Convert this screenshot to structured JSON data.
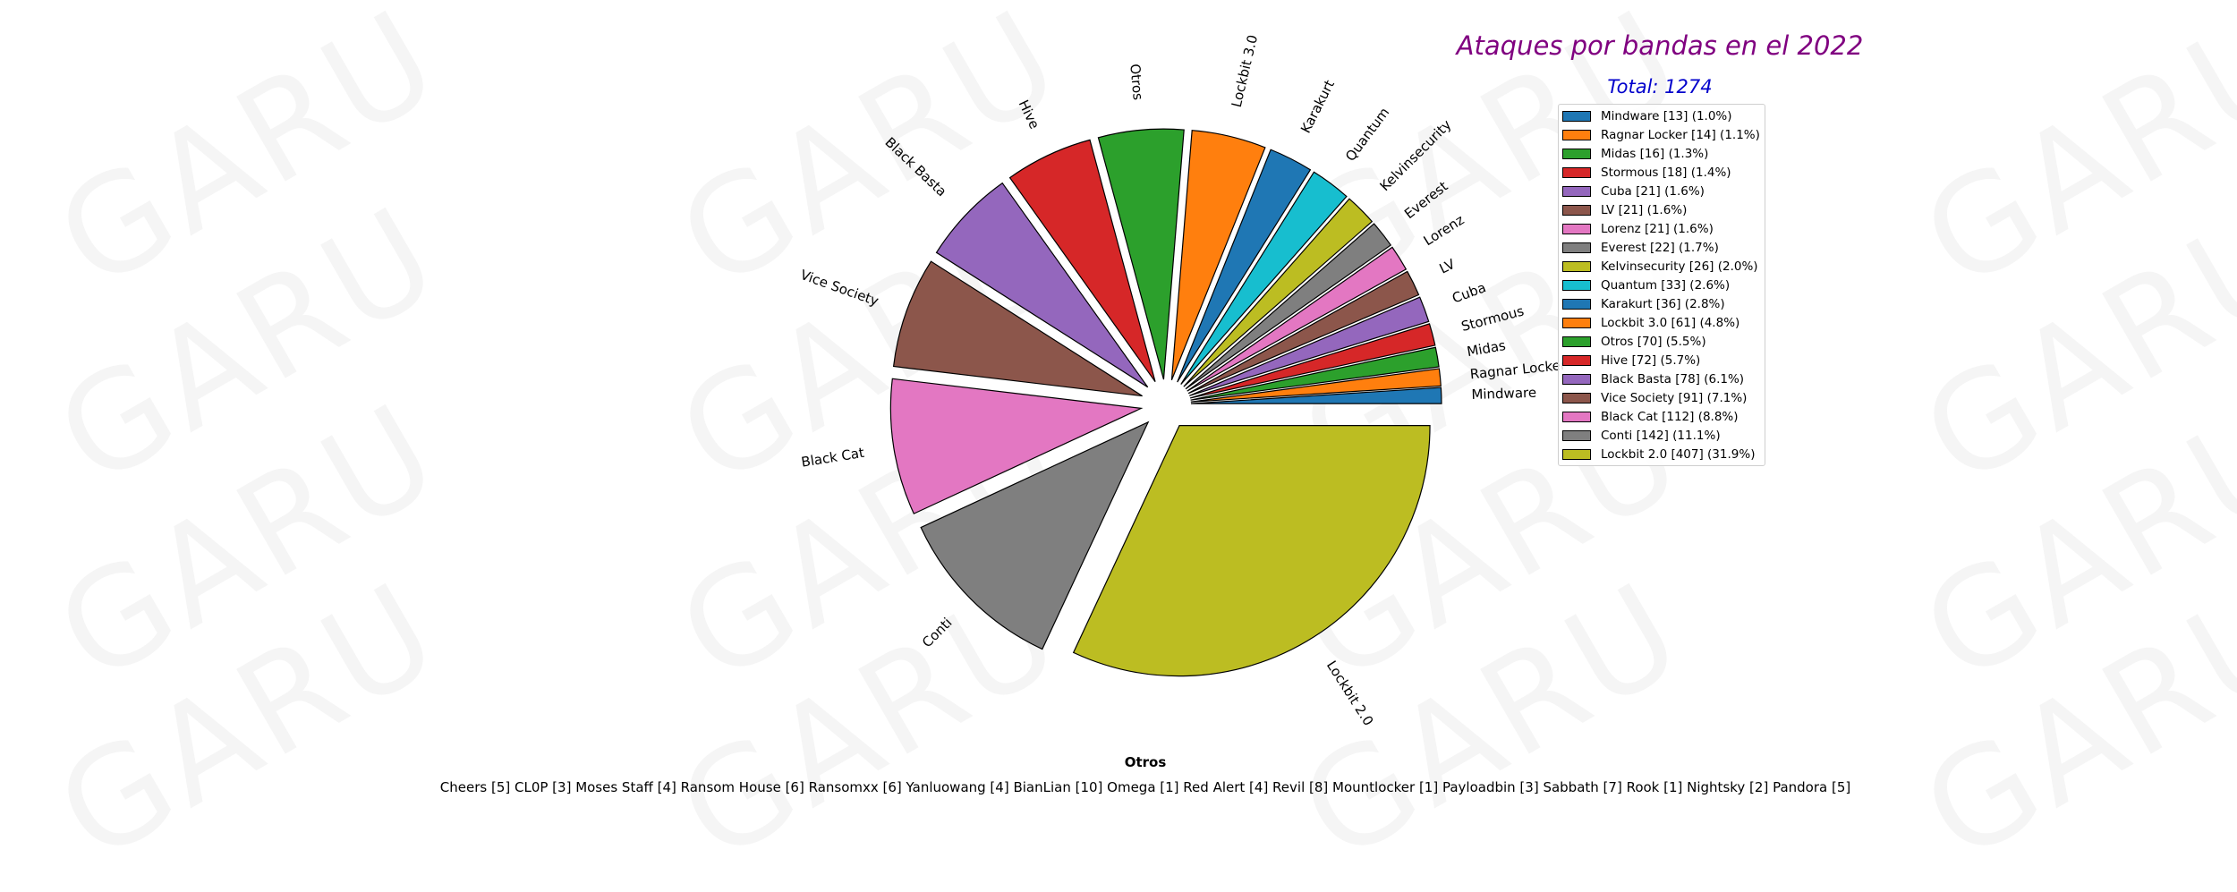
{
  "watermark": "GARU",
  "chart_data": {
    "type": "pie",
    "title": "Ataques por bandas en el 2022",
    "subtitle": "Total: 1274",
    "slices": [
      {
        "label": "Mindware",
        "value": 13,
        "legend": "Mindware [13] (1.0%)",
        "color": "#1f77b4"
      },
      {
        "label": "Ragnar Locker",
        "value": 14,
        "legend": "Ragnar Locker [14] (1.1%)",
        "color": "#ff7f0e"
      },
      {
        "label": "Midas",
        "value": 16,
        "legend": "Midas [16] (1.3%)",
        "color": "#2ca02c"
      },
      {
        "label": "Stormous",
        "value": 18,
        "legend": "Stormous [18] (1.4%)",
        "color": "#d62728"
      },
      {
        "label": "Cuba",
        "value": 21,
        "legend": "Cuba [21] (1.6%)",
        "color": "#9467bd"
      },
      {
        "label": "LV",
        "value": 21,
        "legend": "LV [21] (1.6%)",
        "color": "#8c564b"
      },
      {
        "label": "Lorenz",
        "value": 21,
        "legend": "Lorenz [21] (1.6%)",
        "color": "#e377c2"
      },
      {
        "label": "Everest",
        "value": 22,
        "legend": "Everest [22] (1.7%)",
        "color": "#7f7f7f"
      },
      {
        "label": "Kelvinsecurity",
        "value": 26,
        "legend": "Kelvinsecurity [26] (2.0%)",
        "color": "#bcbd22"
      },
      {
        "label": "Quantum",
        "value": 33,
        "legend": "Quantum [33] (2.6%)",
        "color": "#17becf"
      },
      {
        "label": "Karakurt",
        "value": 36,
        "legend": "Karakurt [36] (2.8%)",
        "color": "#1f77b4"
      },
      {
        "label": "Lockbit 3.0",
        "value": 61,
        "legend": "Lockbit 3.0 [61] (4.8%)",
        "color": "#ff7f0e"
      },
      {
        "label": "Otros",
        "value": 70,
        "legend": "Otros [70] (5.5%)",
        "color": "#2ca02c"
      },
      {
        "label": "Hive",
        "value": 72,
        "legend": "Hive [72] (5.7%)",
        "color": "#d62728"
      },
      {
        "label": "Black Basta",
        "value": 78,
        "legend": "Black Basta [78] (6.1%)",
        "color": "#9467bd"
      },
      {
        "label": "Vice Society",
        "value": 91,
        "legend": "Vice Society [91] (7.1%)",
        "color": "#8c564b"
      },
      {
        "label": "Black Cat",
        "value": 112,
        "legend": "Black Cat [112] (8.8%)",
        "color": "#e377c2"
      },
      {
        "label": "Conti",
        "value": 142,
        "legend": "Conti [142] (11.1%)",
        "color": "#7f7f7f"
      },
      {
        "label": "Lockbit 2.0",
        "value": 407,
        "legend": "Lockbit 2.0 [407] (31.9%)",
        "color": "#bcbd22"
      }
    ],
    "start_angle_deg": 0,
    "direction": "counterclockwise",
    "legend_placement": "right"
  },
  "otros": {
    "title": "Otros",
    "items": "Cheers  [5]  CL0P  [3]  Moses Staff  [4]  Ransom House  [6]  Ransomxx  [6]  Yanluowang  [4]  BianLian  [10]  Omega  [1]  Red Alert  [4]  Revil  [8]  Mountlocker  [1]  Payloadbin  [3]  Sabbath  [7]  Rook  [1]  Nightsky  [2]  Pandora  [5]"
  }
}
